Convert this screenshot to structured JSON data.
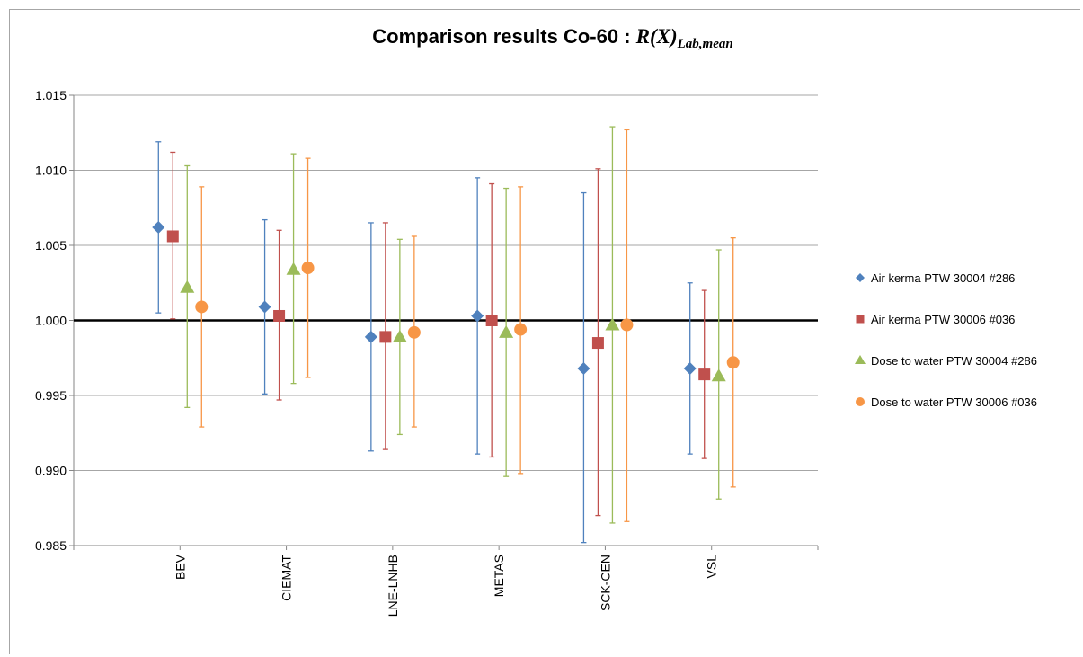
{
  "chart_data": {
    "type": "scatter",
    "title_prefix": "Comparison results Co-60 : ",
    "title_formula": "R(X)",
    "title_subscript": "Lab,mean",
    "categories": [
      "BEV",
      "CIEMAT",
      "LNE-LNHB",
      "METAS",
      "SCK-CEN",
      "VSL"
    ],
    "ylim": [
      0.985,
      1.015
    ],
    "yticks": [
      "0.985",
      "0.990",
      "0.995",
      "1.000",
      "1.005",
      "1.010",
      "1.015"
    ],
    "reference_line": 1.0,
    "grid": true,
    "legend_position": "right",
    "series": [
      {
        "name": "Air kerma PTW 30004 #286",
        "color": "#4f81bd",
        "marker": "diamond",
        "values": [
          1.0062,
          1.0009,
          0.9989,
          1.0003,
          0.9968,
          0.9968
        ],
        "err_low": [
          1.0005,
          0.9951,
          0.9913,
          0.9911,
          0.9852,
          0.9911
        ],
        "err_high": [
          1.0119,
          1.0067,
          1.0065,
          1.0095,
          1.0085,
          1.0025
        ]
      },
      {
        "name": "Air kerma PTW 30006 #036",
        "color": "#c0504d",
        "marker": "square",
        "values": [
          1.0056,
          1.0003,
          0.9989,
          1.0,
          0.9985,
          0.9964
        ],
        "err_low": [
          1.0001,
          0.9947,
          0.9914,
          0.9909,
          0.987,
          0.9908
        ],
        "err_high": [
          1.0112,
          1.006,
          1.0065,
          1.0091,
          1.0101,
          1.002
        ]
      },
      {
        "name": "Dose to water PTW 30004 #286",
        "color": "#9bbb59",
        "marker": "triangle",
        "values": [
          1.0022,
          1.0034,
          0.9989,
          0.9992,
          0.9997,
          0.9963
        ],
        "err_low": [
          0.9942,
          0.9958,
          0.9924,
          0.9896,
          0.9865,
          0.9881
        ],
        "err_high": [
          1.0103,
          1.0111,
          1.0054,
          1.0088,
          1.0129,
          1.0047
        ]
      },
      {
        "name": "Dose to water PTW 30006 #036",
        "color": "#f79646",
        "marker": "circle",
        "values": [
          1.0009,
          1.0035,
          0.9992,
          0.9994,
          0.9997,
          0.9972
        ],
        "err_low": [
          0.9929,
          0.9962,
          0.9929,
          0.9898,
          0.9866,
          0.9889
        ],
        "err_high": [
          1.0089,
          1.0108,
          1.0056,
          1.0089,
          1.0127,
          1.0055
        ]
      }
    ]
  }
}
